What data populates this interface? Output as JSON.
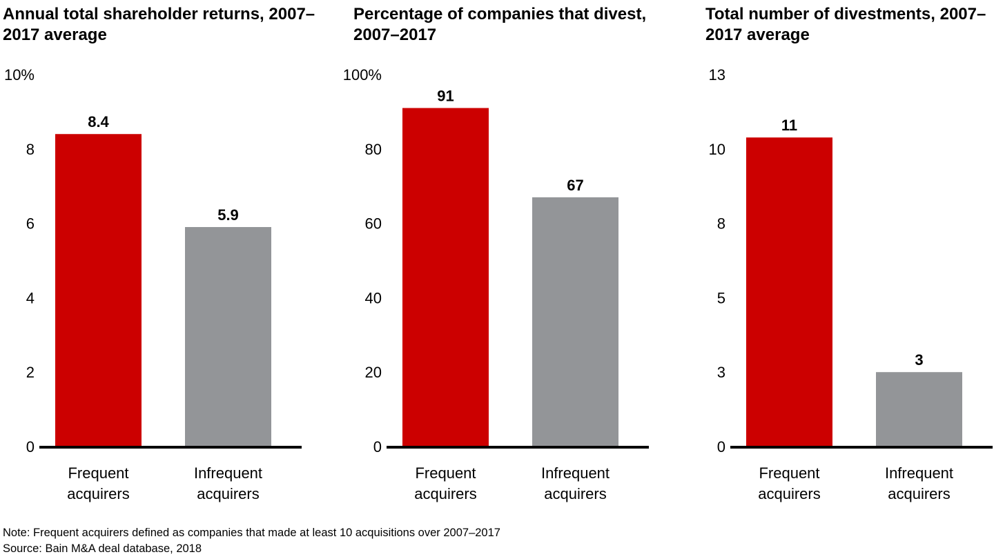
{
  "chart_data": [
    {
      "type": "bar",
      "title": "Annual total shareholder returns, 2007–2017 average",
      "categories": [
        "Frequent acquirers",
        "Infrequent acquirers"
      ],
      "values": [
        8.4,
        5.9
      ],
      "data_labels": [
        "8.4",
        "5.9"
      ],
      "ylim": [
        0,
        10
      ],
      "ticks": [
        0,
        2,
        4,
        6,
        8,
        10
      ],
      "tick_labels": [
        "0",
        "2",
        "4",
        "6",
        "8",
        "10%"
      ],
      "grid": false
    },
    {
      "type": "bar",
      "title": "Percentage of companies that divest, 2007–2017",
      "categories": [
        "Frequent acquirers",
        "Infrequent acquirers"
      ],
      "values": [
        91,
        67
      ],
      "data_labels": [
        "91",
        "67"
      ],
      "ylim": [
        0,
        100
      ],
      "ticks": [
        0,
        20,
        40,
        60,
        80,
        100
      ],
      "tick_labels": [
        "0",
        "20",
        "40",
        "60",
        "80",
        "100%"
      ],
      "grid": false
    },
    {
      "type": "bar",
      "title": "Total number of divestments, 2007–2017 average",
      "categories": [
        "Frequent acquirers",
        "Infrequent acquirers"
      ],
      "values": [
        10.8,
        2.6
      ],
      "data_labels": [
        "11",
        "3"
      ],
      "ylim": [
        0,
        13
      ],
      "ticks": [
        0,
        2.6,
        5.2,
        7.8,
        10.4,
        13
      ],
      "tick_labels": [
        "0",
        "3",
        "5",
        "8",
        "10",
        "13"
      ],
      "grid": false
    }
  ],
  "colors": {
    "frequent": "#CC0000",
    "infrequent": "#939598",
    "axis": "#000000"
  },
  "footer": {
    "note": "Note: Frequent acquirers defined as companies that made at least 10 acquisitions over 2007–2017",
    "source": "Source: Bain M&A deal database, 2018"
  }
}
